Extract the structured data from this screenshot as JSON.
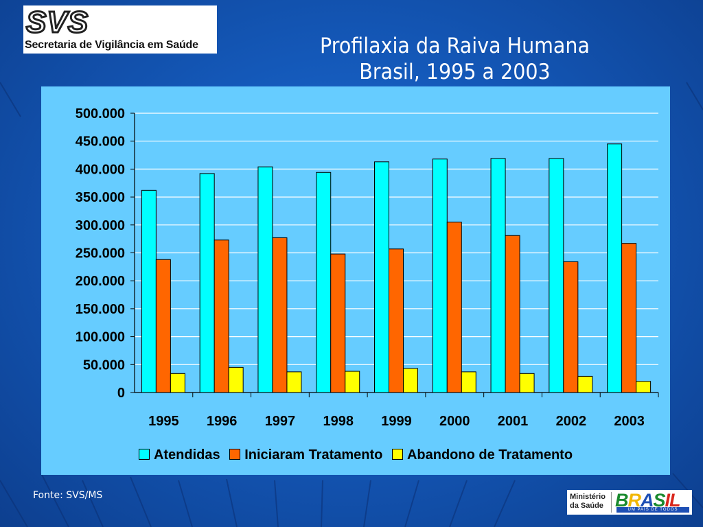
{
  "header": {
    "logo_mark": "SVS",
    "logo_text": "Secretaria de Vigilância em Saúde"
  },
  "footer": {
    "source": "Fonte: SVS/MS",
    "ministry": "Ministério da Saúde",
    "brasil_mark": "BRASIL",
    "brasil_tagline": "UM PAÍS DE TODOS"
  },
  "colors": {
    "background": "#1458b8",
    "plot_panel": "#66ccff",
    "atendidas": "#00ffff",
    "iniciaram": "#ff6600",
    "abandono": "#ffff00"
  },
  "chart_data": {
    "type": "bar",
    "title": [
      "Profilaxia da Raiva Humana",
      "Brasil, 1995 a 2003"
    ],
    "xlabel": "",
    "ylabel": "",
    "categories": [
      "1995",
      "1996",
      "1997",
      "1998",
      "1999",
      "2000",
      "2001",
      "2002",
      "2003"
    ],
    "ylim": [
      0,
      500000
    ],
    "yticks": [
      "0",
      "50.000",
      "100.000",
      "150.000",
      "200.000",
      "250.000",
      "300.000",
      "350.000",
      "400.000",
      "450.000",
      "500.000"
    ],
    "grid": true,
    "legend_position": "bottom",
    "series": [
      {
        "name": "Atendidas",
        "color": "#00ffff",
        "values": [
          362000,
          392000,
          404000,
          394000,
          413000,
          418000,
          419000,
          419000,
          445000
        ]
      },
      {
        "name": "Iniciaram Tratamento",
        "color": "#ff6600",
        "values": [
          238000,
          273000,
          277000,
          248000,
          257000,
          305000,
          281000,
          234000,
          267000
        ]
      },
      {
        "name": "Abandono de Tratamento",
        "color": "#ffff00",
        "values": [
          34000,
          45000,
          37000,
          38000,
          43000,
          37000,
          34000,
          29000,
          20000
        ]
      }
    ]
  }
}
